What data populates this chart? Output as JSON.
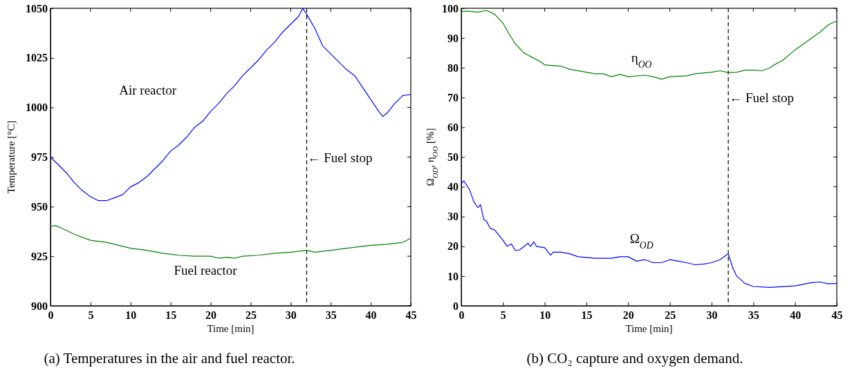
{
  "chart_data": [
    {
      "type": "line",
      "title": "(a) Temperatures in the air and fuel reactor.",
      "xlabel": "Time [min]",
      "ylabel": "Temperature [°C]",
      "xlim": [
        0,
        45
      ],
      "xticks": [
        0,
        5,
        10,
        15,
        20,
        25,
        30,
        35,
        40,
        45
      ],
      "ylim": [
        900,
        1050
      ],
      "yticks": [
        900,
        925,
        950,
        975,
        1000,
        1025,
        1050
      ],
      "grid": false,
      "ref_lines": [
        {
          "axis": "x",
          "value": 32,
          "label": "← Fuel stop",
          "color": "#000000",
          "line_style": "dashed"
        }
      ],
      "series": [
        {
          "name": "Air reactor",
          "color": "#0000ff",
          "x": [
            0,
            1,
            2,
            3,
            4,
            5,
            6,
            7,
            8,
            9,
            10,
            11,
            12,
            13,
            14,
            15,
            16,
            17,
            18,
            19,
            20,
            21,
            22,
            23,
            24,
            25,
            26,
            27,
            28,
            29,
            30,
            31,
            31.5,
            32,
            33,
            34,
            35,
            36,
            37,
            38,
            39,
            40,
            41,
            41.5,
            42,
            43,
            44,
            45
          ],
          "values": [
            975,
            971,
            967,
            962,
            958,
            955,
            953,
            953,
            954.5,
            956,
            960,
            962,
            965,
            969,
            973,
            978,
            981,
            985,
            990,
            993,
            998,
            1002,
            1007,
            1011,
            1016,
            1020,
            1024,
            1029,
            1033,
            1038,
            1042,
            1046,
            1050,
            1047,
            1040,
            1031,
            1027,
            1023,
            1019,
            1016,
            1010,
            1004,
            998,
            995.5,
            997,
            1002,
            1006,
            1006.5
          ]
        },
        {
          "name": "Fuel reactor",
          "color": "#008000",
          "x": [
            0,
            0.6,
            2,
            3,
            5,
            7,
            8,
            10,
            12,
            14,
            16,
            18,
            20,
            21,
            22,
            23,
            24,
            26,
            28,
            30,
            32,
            33,
            35,
            37,
            40,
            42,
            44,
            45
          ],
          "values": [
            940,
            940.5,
            938,
            936,
            933,
            932,
            931,
            929,
            928,
            926.5,
            925.5,
            925,
            925,
            924,
            924.5,
            924,
            925,
            925.5,
            926.5,
            927,
            928,
            927,
            928,
            929,
            930.5,
            931,
            932,
            934
          ]
        }
      ]
    },
    {
      "type": "line",
      "title": "(b) CO₂ capture and oxygen demand.",
      "xlabel": "Time [min]",
      "ylabel": "Ω$_{OD}$, η$_{OO}$ [%]",
      "xlim": [
        0,
        45
      ],
      "xticks": [
        0,
        5,
        10,
        15,
        20,
        25,
        30,
        35,
        40,
        45
      ],
      "ylim": [
        0,
        100
      ],
      "yticks": [
        0,
        10,
        20,
        30,
        40,
        50,
        60,
        70,
        80,
        90,
        100
      ],
      "grid": false,
      "ref_lines": [
        {
          "axis": "x",
          "value": 32,
          "label": "← Fuel stop",
          "color": "#000000",
          "line_style": "dashed"
        }
      ],
      "series": [
        {
          "name": "η$_{OO}$",
          "color": "#008000",
          "x": [
            0,
            1,
            2,
            3,
            4,
            5,
            5.8,
            6.5,
            7.5,
            8.5,
            9.5,
            10,
            12,
            13,
            15,
            16,
            17,
            18,
            19,
            20,
            22,
            23,
            24,
            25,
            27,
            28,
            30,
            31,
            32,
            33,
            34,
            35,
            36,
            37,
            37.5,
            38.5,
            40,
            41,
            42,
            43,
            44,
            45
          ],
          "values": [
            99,
            99,
            98.7,
            99.3,
            98,
            95,
            91,
            88,
            85,
            83.5,
            82,
            81,
            80.5,
            79.5,
            78.5,
            78,
            78,
            77,
            77.8,
            77,
            77.5,
            77,
            76.2,
            77,
            77.3,
            78,
            78.5,
            79,
            78.4,
            78.5,
            79.2,
            79.2,
            79,
            80,
            81,
            82.5,
            86,
            88,
            90,
            92,
            94.5,
            95.7
          ]
        },
        {
          "name": "Ω$_{OD}$",
          "color": "#0000ff",
          "x": [
            0,
            0.3,
            1,
            1.5,
            2,
            2.3,
            2.7,
            3,
            3.5,
            4,
            5,
            5.5,
            6,
            6.5,
            7,
            8,
            8.3,
            8.7,
            9,
            10,
            10.7,
            11,
            12,
            13,
            14,
            16,
            17,
            18,
            19,
            20,
            21,
            22,
            23,
            24,
            25,
            26,
            27,
            28,
            29,
            30,
            31,
            32,
            32.5,
            33,
            34,
            35,
            37,
            40,
            42,
            43,
            44,
            45
          ],
          "values": [
            41,
            42,
            39,
            35,
            33,
            34,
            29,
            28.5,
            26,
            25.5,
            22,
            20,
            20.8,
            18.5,
            18.8,
            21,
            20,
            21.5,
            20,
            19.5,
            17,
            18,
            18,
            17.5,
            16.5,
            16,
            16,
            16,
            16.5,
            16.5,
            15,
            15.5,
            14.5,
            14.5,
            15.5,
            15,
            14.5,
            13.8,
            14,
            14.5,
            15.5,
            17.5,
            13,
            10,
            7.5,
            6.5,
            6.2,
            6.7,
            7.8,
            8,
            7.4,
            7.5
          ]
        }
      ]
    }
  ]
}
